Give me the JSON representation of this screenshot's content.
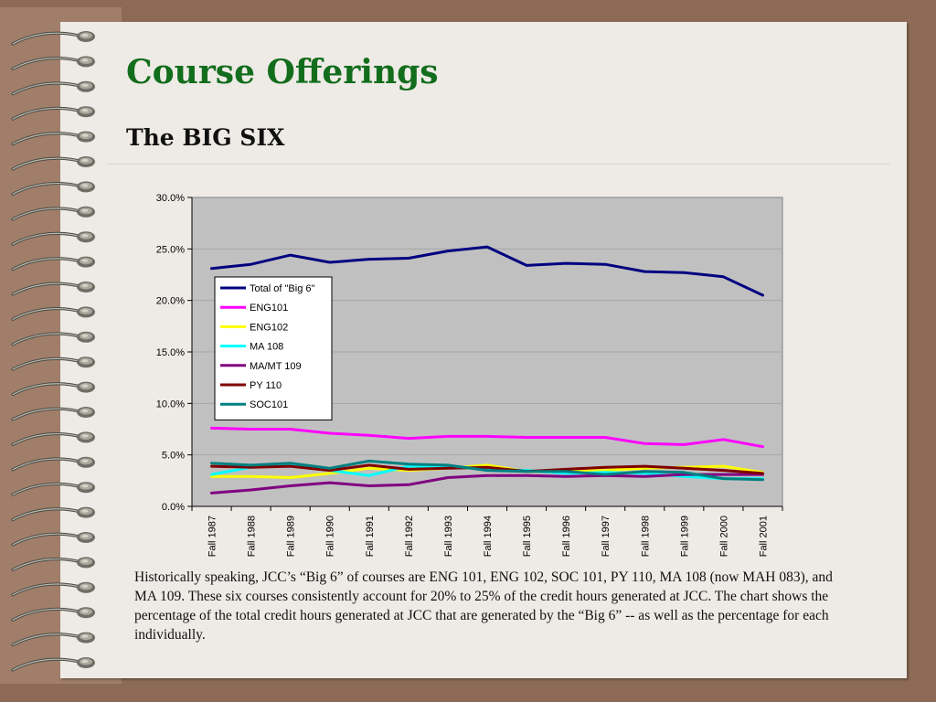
{
  "slide": {
    "title": "Course Offerings",
    "subtitle": "The BIG SIX",
    "description": "Historically speaking, JCC’s “Big 6” of courses are ENG 101, ENG 102, SOC 101, PY 110, MA 108 (now MAH 083), and MA 109.  These six courses consistently account for 20% to 25% of the credit hours generated at JCC.  The chart shows the percentage of the total credit hours generated at JCC that are generated by the “Big 6” -- as well as the percentage for each individually."
  },
  "chart_data": {
    "type": "line",
    "categories": [
      "Fall 1987",
      "Fall 1988",
      "Fall 1989",
      "Fall 1990",
      "Fall 1991",
      "Fall 1992",
      "Fall 1993",
      "Fall 1994",
      "Fall 1995",
      "Fall 1996",
      "Fall 1997",
      "Fall 1998",
      "Fall 1999",
      "Fall 2000",
      "Fall 2001"
    ],
    "ylim": [
      0,
      0.3
    ],
    "yticks": [
      0,
      0.05,
      0.1,
      0.15,
      0.2,
      0.25,
      0.3
    ],
    "ytick_labels": [
      "0.0%",
      "5.0%",
      "10.0%",
      "15.0%",
      "20.0%",
      "25.0%",
      "30.0%"
    ],
    "grid": true,
    "plot_background": "#c0c0c0",
    "legend_placement": "upper-left",
    "series": [
      {
        "name": "Total of \"Big 6\"",
        "color": "#000080",
        "values": [
          0.231,
          0.235,
          0.244,
          0.237,
          0.24,
          0.241,
          0.248,
          0.252,
          0.234,
          0.236,
          0.235,
          0.228,
          0.227,
          0.223,
          0.205
        ]
      },
      {
        "name": "ENG101",
        "color": "#ff00ff",
        "values": [
          0.076,
          0.075,
          0.075,
          0.071,
          0.069,
          0.066,
          0.068,
          0.068,
          0.067,
          0.067,
          0.067,
          0.061,
          0.06,
          0.065,
          0.058
        ]
      },
      {
        "name": "ENG102",
        "color": "#ffff00",
        "values": [
          0.029,
          0.029,
          0.028,
          0.032,
          0.037,
          0.035,
          0.037,
          0.04,
          0.034,
          0.034,
          0.035,
          0.037,
          0.038,
          0.039,
          0.033
        ]
      },
      {
        "name": "MA 108",
        "color": "#00ffff",
        "values": [
          0.031,
          0.038,
          0.04,
          0.035,
          0.03,
          0.039,
          0.039,
          0.036,
          0.035,
          0.032,
          0.033,
          0.032,
          0.029,
          0.027,
          0.027
        ]
      },
      {
        "name": "MA/MT 109",
        "color": "#800080",
        "values": [
          0.013,
          0.016,
          0.02,
          0.023,
          0.02,
          0.021,
          0.028,
          0.03,
          0.03,
          0.029,
          0.03,
          0.029,
          0.031,
          0.031,
          0.031
        ]
      },
      {
        "name": "PY 110",
        "color": "#800000",
        "values": [
          0.039,
          0.038,
          0.039,
          0.035,
          0.04,
          0.036,
          0.037,
          0.038,
          0.034,
          0.036,
          0.038,
          0.039,
          0.037,
          0.035,
          0.032
        ]
      },
      {
        "name": "SOC101",
        "color": "#008080",
        "values": [
          0.042,
          0.04,
          0.042,
          0.037,
          0.044,
          0.041,
          0.04,
          0.035,
          0.034,
          0.034,
          0.031,
          0.034,
          0.033,
          0.027,
          0.026
        ]
      }
    ]
  },
  "colors": {
    "title_green": "#126d1c",
    "border_brown": "#8c6a55",
    "paper": "#eeebe6",
    "spiral_metal": "#8a8a80"
  },
  "icons": {
    "binding": "spiral-ring-icon"
  }
}
